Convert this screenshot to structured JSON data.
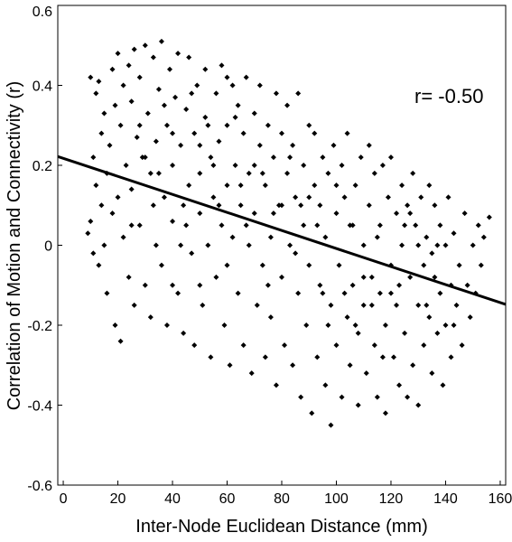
{
  "chart_data": {
    "type": "scatter",
    "title": "",
    "xlabel": "Inter-Node Euclidean Distance (mm)",
    "ylabel": "Correlation of Motion and Connectivity (r)",
    "xlim": [
      -2,
      162
    ],
    "ylim": [
      -0.6,
      0.6
    ],
    "xticks": [
      0,
      20,
      40,
      60,
      80,
      100,
      120,
      140,
      160
    ],
    "yticks": [
      -0.6,
      -0.4,
      -0.2,
      0,
      0.2,
      0.4,
      0.6
    ],
    "xtick_labels": [
      "0",
      "20",
      "40",
      "60",
      "80",
      "100",
      "120",
      "140",
      "160"
    ],
    "ytick_labels": [
      "-0.6",
      "-0.4",
      "-0.2",
      "0",
      "0.2",
      "0.4",
      "0.6"
    ],
    "annotation": "r= -0.50",
    "marker_color": "#000000",
    "grid": false,
    "fit_line": {
      "x": [
        -2,
        162
      ],
      "y": [
        0.222,
        -0.148
      ]
    },
    "series": [
      {
        "points": [
          [
            9,
            0.03
          ],
          [
            10,
            0.42
          ],
          [
            10,
            0.06
          ],
          [
            11,
            -0.02
          ],
          [
            11,
            0.22
          ],
          [
            12,
            0.15
          ],
          [
            12,
            0.38
          ],
          [
            13,
            0.41
          ],
          [
            13,
            -0.05
          ],
          [
            14,
            0.1
          ],
          [
            14,
            0.28
          ],
          [
            15,
            0.33
          ],
          [
            15,
            0.0
          ],
          [
            16,
            0.18
          ],
          [
            16,
            -0.12
          ],
          [
            17,
            0.25
          ],
          [
            18,
            0.44
          ],
          [
            18,
            0.08
          ],
          [
            19,
            -0.2
          ],
          [
            19,
            0.35
          ],
          [
            20,
            0.48
          ],
          [
            20,
            0.12
          ],
          [
            21,
            -0.24
          ],
          [
            21,
            0.3
          ],
          [
            22,
            0.4
          ],
          [
            22,
            0.02
          ],
          [
            23,
            0.2
          ],
          [
            24,
            0.45
          ],
          [
            24,
            -0.08
          ],
          [
            25,
            0.36
          ],
          [
            25,
            0.14
          ],
          [
            26,
            0.49
          ],
          [
            26,
            -0.15
          ],
          [
            27,
            0.27
          ],
          [
            28,
            0.05
          ],
          [
            28,
            0.42
          ],
          [
            29,
            0.22
          ],
          [
            30,
            0.5
          ],
          [
            30,
            -0.1
          ],
          [
            31,
            0.33
          ],
          [
            32,
            0.18
          ],
          [
            32,
            -0.18
          ],
          [
            33,
            0.47
          ],
          [
            34,
            0.26
          ],
          [
            34,
            0.0
          ],
          [
            35,
            0.39
          ],
          [
            36,
            0.51
          ],
          [
            36,
            -0.05
          ],
          [
            37,
            0.12
          ],
          [
            38,
            0.3
          ],
          [
            38,
            -0.2
          ],
          [
            39,
            0.44
          ],
          [
            40,
            0.2
          ],
          [
            40,
            0.06
          ],
          [
            41,
            0.37
          ],
          [
            42,
            -0.12
          ],
          [
            42,
            0.48
          ],
          [
            43,
            0.25
          ],
          [
            44,
            0.1
          ],
          [
            44,
            -0.22
          ],
          [
            45,
            0.34
          ],
          [
            46,
            0.15
          ],
          [
            46,
            0.47
          ],
          [
            47,
            -0.02
          ],
          [
            48,
            0.28
          ],
          [
            48,
            -0.25
          ],
          [
            49,
            0.4
          ],
          [
            50,
            0.08
          ],
          [
            50,
            0.18
          ],
          [
            51,
            -0.15
          ],
          [
            52,
            0.32
          ],
          [
            52,
            0.44
          ],
          [
            53,
            0.0
          ],
          [
            54,
            0.22
          ],
          [
            54,
            -0.28
          ],
          [
            55,
            0.12
          ],
          [
            56,
            0.38
          ],
          [
            56,
            -0.08
          ],
          [
            57,
            0.26
          ],
          [
            58,
            0.45
          ],
          [
            58,
            0.05
          ],
          [
            59,
            -0.2
          ],
          [
            60,
            0.3
          ],
          [
            60,
            0.15
          ],
          [
            61,
            -0.3
          ],
          [
            62,
            0.4
          ],
          [
            62,
            0.02
          ],
          [
            63,
            0.2
          ],
          [
            64,
            -0.12
          ],
          [
            64,
            0.35
          ],
          [
            65,
            0.1
          ],
          [
            66,
            0.28
          ],
          [
            66,
            -0.25
          ],
          [
            67,
            0.42
          ],
          [
            68,
            0.0
          ],
          [
            68,
            0.18
          ],
          [
            69,
            -0.32
          ],
          [
            70,
            0.33
          ],
          [
            70,
            0.08
          ],
          [
            71,
            -0.15
          ],
          [
            72,
            0.25
          ],
          [
            72,
            0.4
          ],
          [
            73,
            -0.05
          ],
          [
            74,
            0.15
          ],
          [
            74,
            -0.28
          ],
          [
            75,
            0.3
          ],
          [
            76,
            0.02
          ],
          [
            76,
            -0.18
          ],
          [
            77,
            0.22
          ],
          [
            78,
            0.38
          ],
          [
            78,
            -0.35
          ],
          [
            79,
            0.1
          ],
          [
            80,
            0.28
          ],
          [
            80,
            -0.08
          ],
          [
            81,
            -0.25
          ],
          [
            82,
            0.18
          ],
          [
            82,
            0.35
          ],
          [
            83,
            0.0
          ],
          [
            84,
            -0.3
          ],
          [
            84,
            0.25
          ],
          [
            85,
            0.12
          ],
          [
            86,
            -0.12
          ],
          [
            86,
            0.38
          ],
          [
            87,
            -0.38
          ],
          [
            88,
            0.2
          ],
          [
            88,
            0.05
          ],
          [
            89,
            -0.2
          ],
          [
            90,
            0.3
          ],
          [
            90,
            -0.05
          ],
          [
            91,
            -0.42
          ],
          [
            92,
            0.15
          ],
          [
            92,
            0.28
          ],
          [
            93,
            -0.28
          ],
          [
            94,
            0.1
          ],
          [
            94,
            -0.1
          ],
          [
            95,
            0.22
          ],
          [
            96,
            -0.35
          ],
          [
            96,
            0.02
          ],
          [
            97,
            0.18
          ],
          [
            98,
            -0.15
          ],
          [
            98,
            -0.45
          ],
          [
            99,
            0.25
          ],
          [
            100,
            0.08
          ],
          [
            100,
            -0.25
          ],
          [
            101,
            -0.05
          ],
          [
            102,
            0.2
          ],
          [
            102,
            -0.38
          ],
          [
            103,
            0.12
          ],
          [
            104,
            -0.18
          ],
          [
            104,
            0.28
          ],
          [
            105,
            -0.3
          ],
          [
            106,
            0.05
          ],
          [
            106,
            -0.1
          ],
          [
            107,
            0.15
          ],
          [
            108,
            -0.22
          ],
          [
            108,
            -0.4
          ],
          [
            109,
            0.22
          ],
          [
            110,
            0.0
          ],
          [
            110,
            -0.15
          ],
          [
            111,
            -0.32
          ],
          [
            112,
            0.1
          ],
          [
            112,
            0.25
          ],
          [
            113,
            -0.08
          ],
          [
            114,
            -0.25
          ],
          [
            114,
            0.18
          ],
          [
            115,
            -0.38
          ],
          [
            116,
            0.05
          ],
          [
            116,
            -0.12
          ],
          [
            117,
            0.2
          ],
          [
            118,
            -0.2
          ],
          [
            118,
            -0.42
          ],
          [
            119,
            0.12
          ],
          [
            120,
            -0.05
          ],
          [
            120,
            0.22
          ],
          [
            121,
            -0.28
          ],
          [
            122,
            0.08
          ],
          [
            122,
            -0.15
          ],
          [
            123,
            -0.35
          ],
          [
            124,
            0.15
          ],
          [
            124,
            0.0
          ],
          [
            125,
            -0.22
          ],
          [
            126,
            0.1
          ],
          [
            126,
            -0.38
          ],
          [
            127,
            -0.08
          ],
          [
            128,
            0.18
          ],
          [
            128,
            -0.3
          ],
          [
            129,
            0.05
          ],
          [
            130,
            -0.15
          ],
          [
            130,
            -0.4
          ],
          [
            131,
            0.12
          ],
          [
            132,
            -0.05
          ],
          [
            132,
            -0.25
          ],
          [
            133,
            0.02
          ],
          [
            134,
            -0.18
          ],
          [
            134,
            0.15
          ],
          [
            135,
            -0.32
          ],
          [
            136,
            -0.08
          ],
          [
            136,
            0.1
          ],
          [
            137,
            -0.22
          ],
          [
            138,
            0.05
          ],
          [
            138,
            -0.12
          ],
          [
            139,
            -0.35
          ],
          [
            140,
            0.0
          ],
          [
            140,
            -0.2
          ],
          [
            141,
            0.12
          ],
          [
            142,
            -0.1
          ],
          [
            142,
            -0.28
          ],
          [
            143,
            0.03
          ],
          [
            144,
            -0.15
          ],
          [
            145,
            -0.05
          ],
          [
            146,
            -0.25
          ],
          [
            147,
            0.08
          ],
          [
            148,
            -0.1
          ],
          [
            149,
            -0.18
          ],
          [
            150,
            0.0
          ],
          [
            151,
            -0.12
          ],
          [
            152,
            0.05
          ],
          [
            153,
            -0.05
          ],
          [
            154,
            0.02
          ],
          [
            156,
            0.07
          ],
          [
            30,
            0.22
          ],
          [
            35,
            0.18
          ],
          [
            40,
            0.28
          ],
          [
            45,
            0.05
          ],
          [
            50,
            0.25
          ],
          [
            55,
            0.2
          ],
          [
            60,
            -0.05
          ],
          [
            65,
            0.15
          ],
          [
            70,
            0.2
          ],
          [
            75,
            -0.1
          ],
          [
            80,
            0.1
          ],
          [
            85,
            -0.02
          ],
          [
            90,
            0.12
          ],
          [
            95,
            -0.12
          ],
          [
            100,
            0.15
          ],
          [
            105,
            0.05
          ],
          [
            110,
            -0.08
          ],
          [
            115,
            0.02
          ],
          [
            120,
            -0.12
          ],
          [
            125,
            0.05
          ],
          [
            130,
            0.0
          ],
          [
            135,
            -0.02
          ],
          [
            25,
            0.05
          ],
          [
            28,
            0.3
          ],
          [
            33,
            0.1
          ],
          [
            37,
            0.35
          ],
          [
            43,
            0.0
          ],
          [
            47,
            0.38
          ],
          [
            53,
            0.3
          ],
          [
            57,
            0.1
          ],
          [
            63,
            0.32
          ],
          [
            67,
            0.05
          ],
          [
            73,
            0.18
          ],
          [
            77,
            0.08
          ],
          [
            83,
            0.22
          ],
          [
            87,
            0.1
          ],
          [
            93,
            0.05
          ],
          [
            97,
            -0.2
          ],
          [
            103,
            -0.12
          ],
          [
            107,
            -0.2
          ],
          [
            113,
            -0.15
          ],
          [
            117,
            -0.28
          ],
          [
            123,
            -0.1
          ],
          [
            127,
            0.08
          ],
          [
            133,
            -0.15
          ],
          [
            137,
            0.0
          ],
          [
            143,
            -0.2
          ],
          [
            40,
            -0.1
          ],
          [
            50,
            -0.1
          ],
          [
            60,
            0.42
          ]
        ]
      }
    ]
  }
}
